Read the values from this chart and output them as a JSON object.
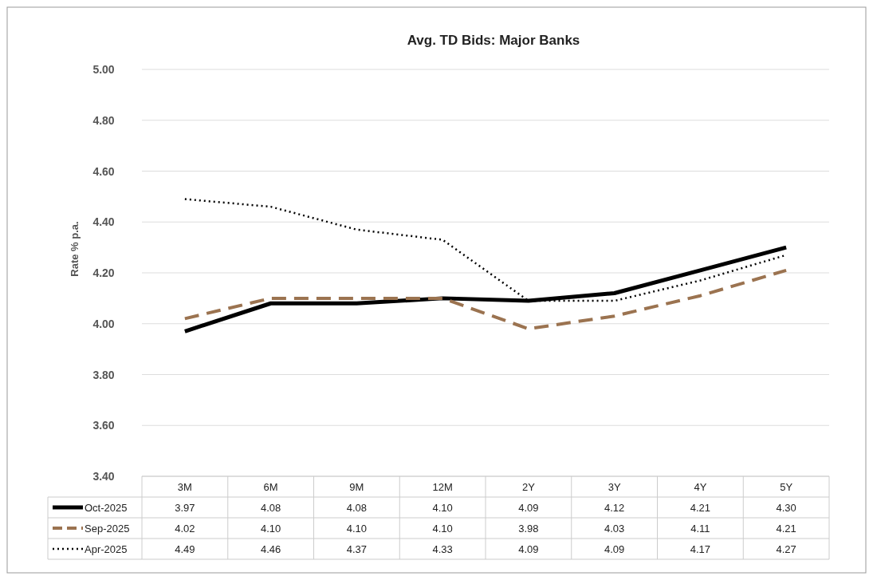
{
  "chart_data": {
    "type": "line",
    "title": "Avg. TD Bids: Major Banks",
    "ylabel": "Rate % p.a.",
    "categories": [
      "3M",
      "6M",
      "9M",
      "12M",
      "2Y",
      "3Y",
      "4Y",
      "5Y"
    ],
    "series": [
      {
        "name": "Oct-2025",
        "color": "#000000",
        "line_style": "solid",
        "values": [
          3.97,
          4.08,
          4.08,
          4.1,
          4.09,
          4.12,
          4.21,
          4.3
        ],
        "value_labels": [
          "3.97",
          "4.08",
          "4.08",
          "4.10",
          "4.09",
          "4.12",
          "4.21",
          "4.30"
        ]
      },
      {
        "name": "Sep-2025",
        "color": "#9b7350",
        "line_style": "dashed",
        "values": [
          4.02,
          4.1,
          4.1,
          4.1,
          3.98,
          4.03,
          4.11,
          4.21
        ],
        "value_labels": [
          "4.02",
          "4.10",
          "4.10",
          "4.10",
          "3.98",
          "4.03",
          "4.11",
          "4.21"
        ]
      },
      {
        "name": "Apr-2025",
        "color": "#000000",
        "line_style": "dotted",
        "values": [
          4.49,
          4.46,
          4.37,
          4.33,
          4.09,
          4.09,
          4.17,
          4.27
        ],
        "value_labels": [
          "4.49",
          "4.46",
          "4.37",
          "4.33",
          "4.09",
          "4.09",
          "4.17",
          "4.27"
        ]
      }
    ],
    "ylim": [
      3.4,
      5.0
    ],
    "yticks": [
      {
        "value": 3.4,
        "label": "3.40"
      },
      {
        "value": 3.6,
        "label": "3.60"
      },
      {
        "value": 3.8,
        "label": "3.80"
      },
      {
        "value": 4.0,
        "label": "4.00"
      },
      {
        "value": 4.2,
        "label": "4.20"
      },
      {
        "value": 4.4,
        "label": "4.40"
      },
      {
        "value": 4.6,
        "label": "4.60"
      },
      {
        "value": 4.8,
        "label": "4.80"
      },
      {
        "value": 5.0,
        "label": "5.00"
      }
    ],
    "grid": "y",
    "legend": "bottom",
    "marker": "none"
  }
}
